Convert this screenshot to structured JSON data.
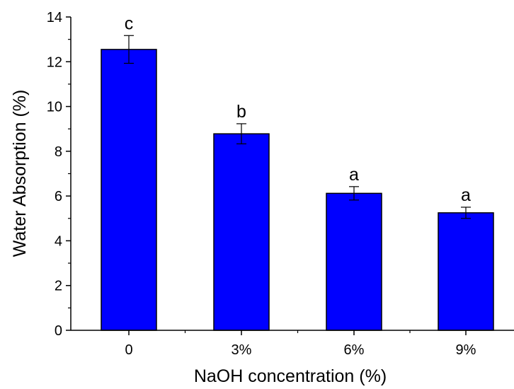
{
  "chart_data": {
    "type": "bar",
    "title": "",
    "xlabel": "NaOH concentration (%)",
    "ylabel": "Water Absorption (%)",
    "categories": [
      "0",
      "3%",
      "6%",
      "9%"
    ],
    "values": [
      12.55,
      8.78,
      6.12,
      5.25
    ],
    "errors": [
      0.62,
      0.45,
      0.3,
      0.25
    ],
    "significance": [
      "c",
      "b",
      "a",
      "a"
    ],
    "ylim": [
      0,
      14
    ],
    "yticks": [
      0,
      2,
      4,
      6,
      8,
      10,
      12,
      14
    ],
    "ytick_labels": [
      "0",
      "2",
      "4",
      "6",
      "8",
      "10",
      "12",
      "14"
    ],
    "grid": false,
    "colors": {
      "bar": "#0000ff",
      "bar_edge": "#000000"
    }
  }
}
